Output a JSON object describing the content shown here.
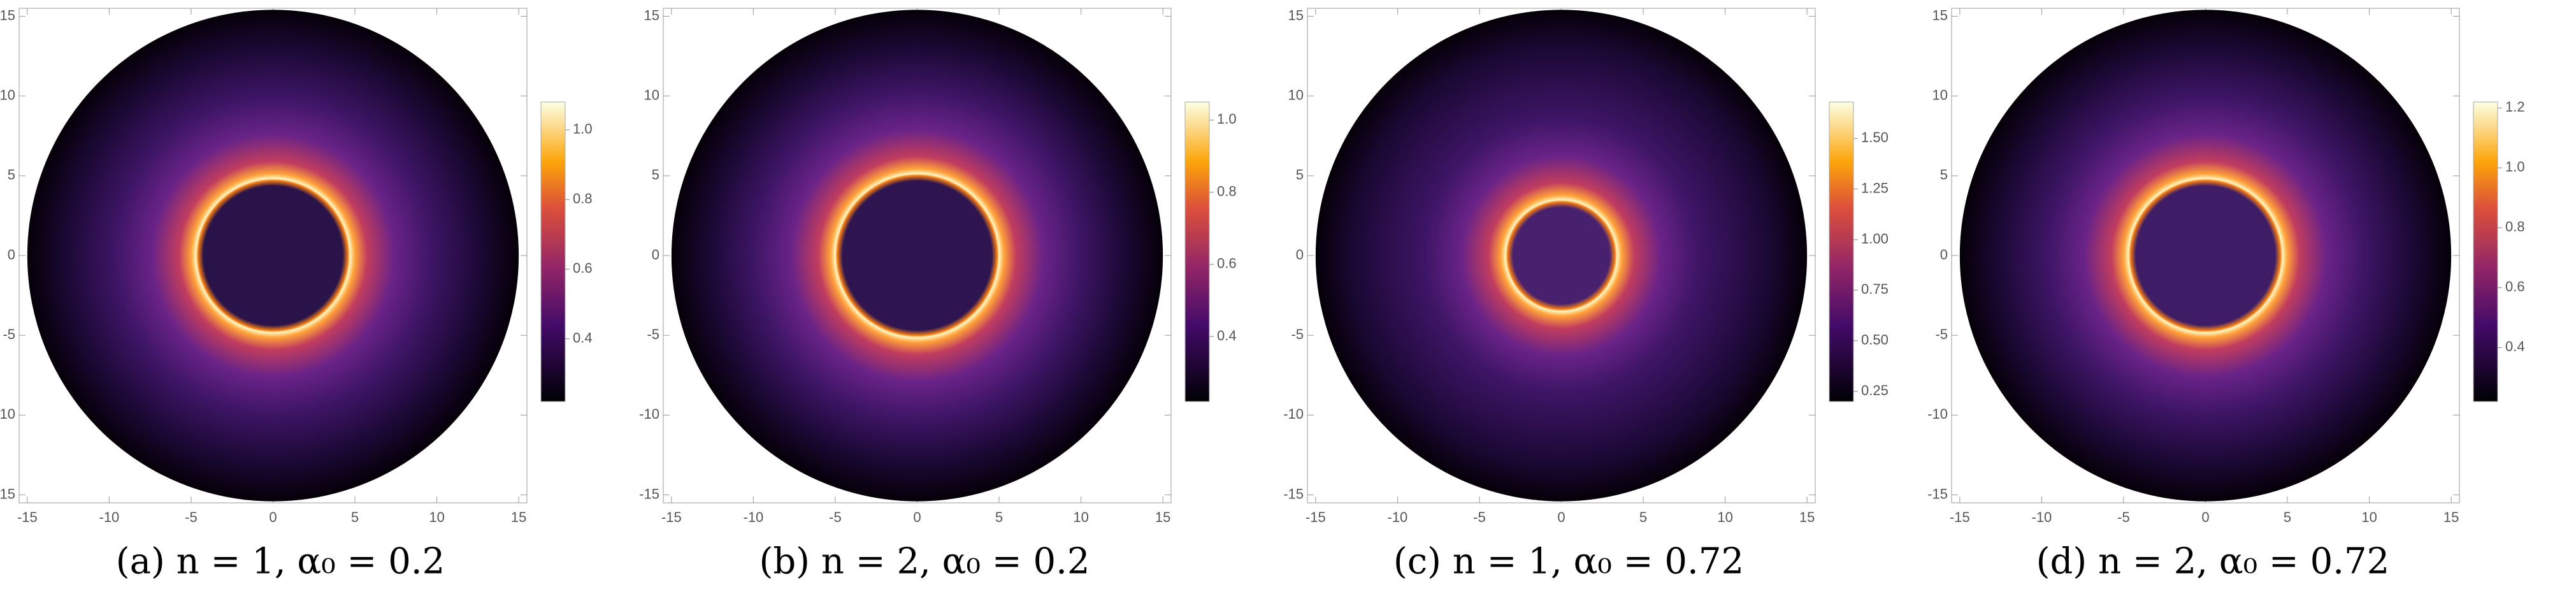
{
  "chart_data": [
    {
      "type": "density",
      "caption": "(a) n = 1, α₀ = 0.2",
      "ring_radius": 4.7,
      "radius": 15,
      "xlim": [
        -15.5,
        15.5
      ],
      "ylim": [
        -15.5,
        15.5
      ],
      "xticks": [
        -15,
        -10,
        -5,
        0,
        5,
        10,
        15
      ],
      "yticks": [
        -15,
        -10,
        -5,
        0,
        5,
        10,
        15
      ],
      "clim": [
        0.22,
        1.08
      ],
      "cticks": [
        0.4,
        0.6,
        0.8,
        {
          "value": 1,
          "label": "1.0"
        }
      ],
      "inner_color": "#2a1348"
    },
    {
      "type": "density",
      "caption": "(b) n = 2, α₀ = 0.2",
      "ring_radius": 5,
      "radius": 15,
      "xlim": [
        -15.5,
        15.5
      ],
      "ylim": [
        -15.5,
        15.5
      ],
      "xticks": [
        -15,
        -10,
        -5,
        0,
        5,
        10,
        15
      ],
      "yticks": [
        -15,
        -10,
        -5,
        0,
        5,
        10,
        15
      ],
      "clim": [
        0.22,
        1.05
      ],
      "cticks": [
        0.4,
        0.6,
        0.8,
        {
          "value": 1,
          "label": "1.0"
        }
      ],
      "inner_color": "#2e1550"
    },
    {
      "type": "density",
      "caption": "(c) n = 1, α₀ = 0.72",
      "ring_radius": 3.4,
      "radius": 15,
      "xlim": [
        -15.5,
        15.5
      ],
      "ylim": [
        -15.5,
        15.5
      ],
      "xticks": [
        -15,
        -10,
        -5,
        0,
        5,
        10,
        15
      ],
      "yticks": [
        -15,
        -10,
        -5,
        0,
        5,
        10,
        15
      ],
      "clim": [
        0.2,
        1.68
      ],
      "cticks": [
        {
          "value": 0.25,
          "label": "0.25"
        },
        {
          "value": 0.5,
          "label": "0.50"
        },
        {
          "value": 0.75,
          "label": "0.75"
        },
        {
          "value": 1,
          "label": "1.00"
        },
        {
          "value": 1.25,
          "label": "1.25"
        },
        {
          "value": 1.5,
          "label": "1.50"
        }
      ],
      "inner_color": "#47206e"
    },
    {
      "type": "density",
      "caption": "(d) n = 2, α₀ = 0.72",
      "ring_radius": 4.7,
      "radius": 15,
      "xlim": [
        -15.5,
        15.5
      ],
      "ylim": [
        -15.5,
        15.5
      ],
      "xticks": [
        -15,
        -10,
        -5,
        0,
        5,
        10,
        15
      ],
      "yticks": [
        -15,
        -10,
        -5,
        0,
        5,
        10,
        15
      ],
      "clim": [
        0.22,
        1.22
      ],
      "cticks": [
        0.4,
        0.6,
        0.8,
        {
          "value": 1,
          "label": "1.0"
        },
        {
          "value": 1.2,
          "label": "1.2"
        }
      ],
      "inner_color": "#3e1c66"
    }
  ]
}
